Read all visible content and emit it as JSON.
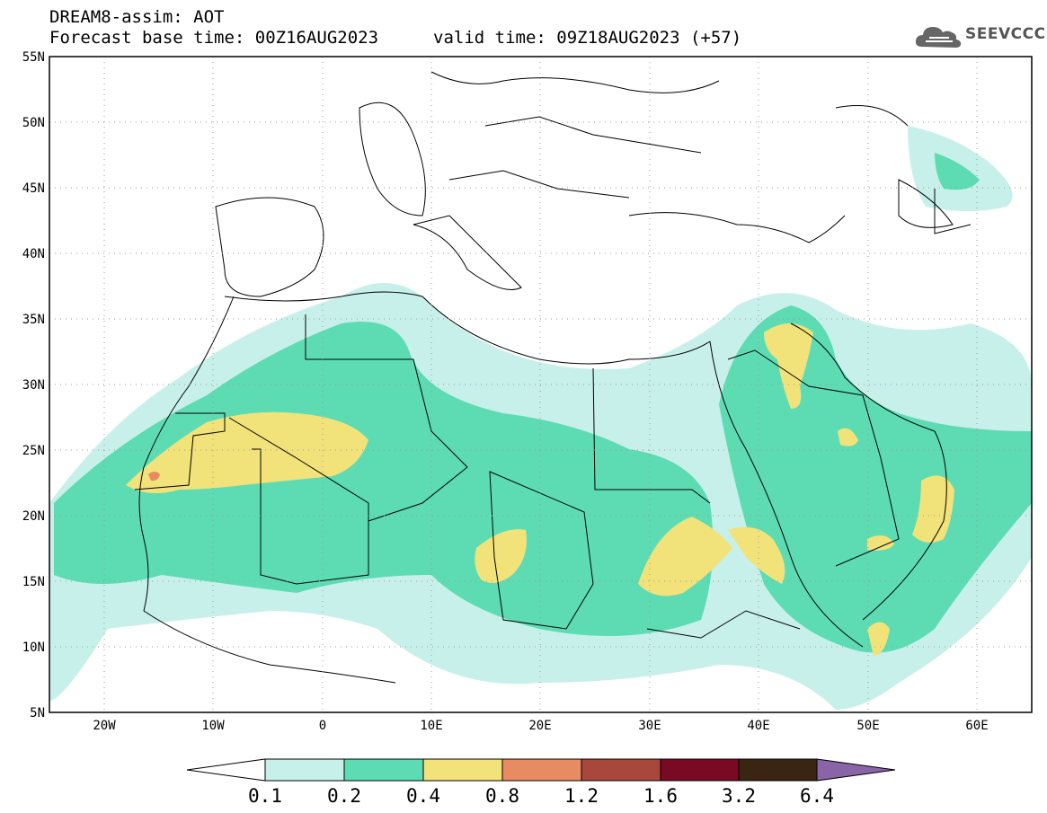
{
  "header": {
    "title": "DREAM8-assim: AOT",
    "base_time": "Forecast base time: 00Z16AUG2023",
    "valid_time": "valid time: 09Z18AUG2023 (+57)"
  },
  "logo": {
    "text": "SEEVCCC",
    "icon": "cloud-icon"
  },
  "map": {
    "lon_range": [
      -25,
      65
    ],
    "lat_range": [
      5,
      55
    ],
    "lat_ticks": [
      "5N",
      "10N",
      "15N",
      "20N",
      "25N",
      "30N",
      "35N",
      "40N",
      "45N",
      "50N",
      "55N"
    ],
    "lon_ticks": [
      "20W",
      "10W",
      "0",
      "10E",
      "20E",
      "30E",
      "40E",
      "50E",
      "60E"
    ],
    "grid": "dotted"
  },
  "colorbar": {
    "labels": [
      "0.1",
      "0.2",
      "0.4",
      "0.8",
      "1.2",
      "1.6",
      "3.2",
      "6.4"
    ],
    "colors": [
      "#c8f0ea",
      "#5ddcb4",
      "#f2e27a",
      "#e88b62",
      "#a8473c",
      "#7a0a24",
      "#3a2412",
      "#8a64a8"
    ]
  }
}
